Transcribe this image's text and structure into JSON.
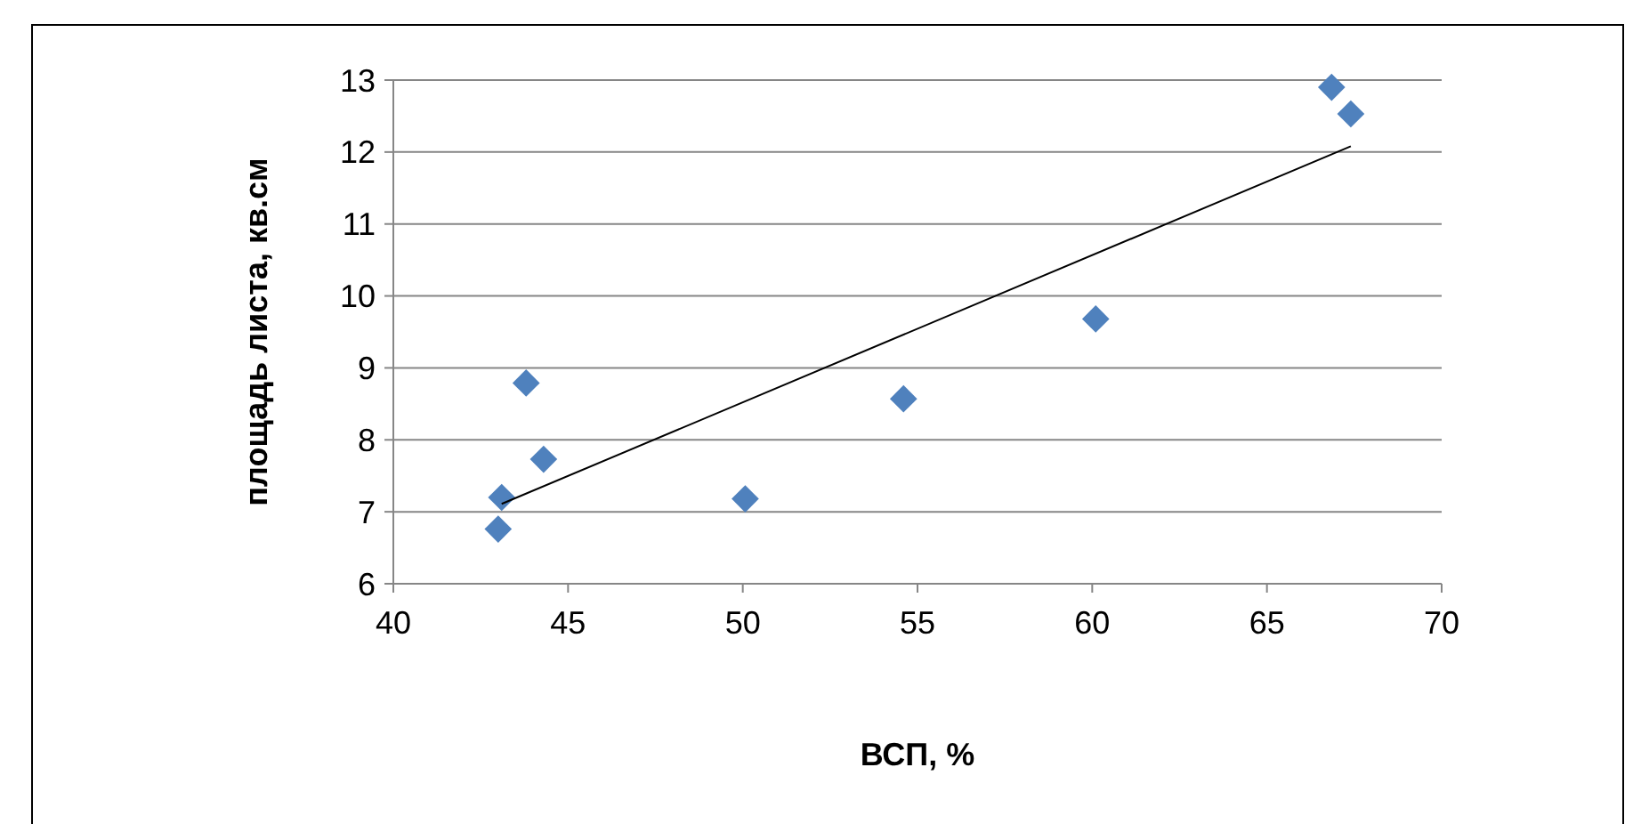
{
  "chart_data": {
    "type": "scatter",
    "xlabel": "ВСП, %",
    "ylabel": "площадь листа, кв.см",
    "xlim": [
      40,
      70
    ],
    "xticks": [
      40,
      45,
      50,
      55,
      60,
      65,
      70
    ],
    "ylim": [
      6,
      13
    ],
    "yticks": [
      6,
      7,
      8,
      9,
      10,
      11,
      12,
      13
    ],
    "grid": "y",
    "series": [
      {
        "color": "#4f81bd",
        "marker": "diamond",
        "x": [
          66.85,
          67.4,
          60.1,
          54.6,
          50.07,
          43.8,
          44.3,
          43.1,
          43.0
        ],
        "values": [
          12.9,
          12.53,
          9.68,
          8.57,
          7.18,
          8.79,
          7.73,
          7.2,
          6.76
        ]
      },
      {
        "type": "line",
        "color": "#000000",
        "marker": "none",
        "x": [
          43.1,
          67.4
        ],
        "values": [
          7.11,
          12.08
        ]
      }
    ]
  }
}
